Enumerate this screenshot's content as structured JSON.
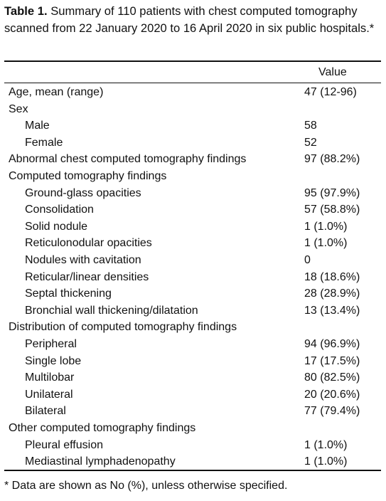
{
  "caption": {
    "label": "Table 1.",
    "text": "Summary of 110 patients with chest computed tomography scanned from 22 January 2020 to 16 April 2020 in six public hospitals.*"
  },
  "table": {
    "header": "Value",
    "rows": [
      {
        "label": "Age, mean (range)",
        "value": "47 (12-96)"
      },
      {
        "label": "Sex",
        "items": [
          {
            "label": "Male",
            "value": "58"
          },
          {
            "label": "Female",
            "value": "52"
          }
        ]
      },
      {
        "label": "Abnormal chest computed tomography findings",
        "value": "97 (88.2%)"
      },
      {
        "label": "Computed tomography findings",
        "items": [
          {
            "label": "Ground-glass opacities",
            "value": "95 (97.9%)"
          },
          {
            "label": "Consolidation",
            "value": "57 (58.8%)"
          },
          {
            "label": "Solid nodule",
            "value": "1 (1.0%)"
          },
          {
            "label": "Reticulonodular opacities",
            "value": "1 (1.0%)"
          },
          {
            "label": "Nodules with cavitation",
            "value": "0"
          },
          {
            "label": "Reticular/linear densities",
            "value": "18 (18.6%)"
          },
          {
            "label": "Septal thickening",
            "value": "28 (28.9%)"
          },
          {
            "label": "Bronchial wall thickening/dilatation",
            "value": "13 (13.4%)"
          }
        ]
      },
      {
        "label": "Distribution of computed tomography findings",
        "items": [
          {
            "label": "Peripheral",
            "value": "94 (96.9%)"
          },
          {
            "label": "Single lobe",
            "value": "17 (17.5%)"
          },
          {
            "label": "Multilobar",
            "value": "80 (82.5%)"
          },
          {
            "label": "Unilateral",
            "value": "20 (20.6%)"
          },
          {
            "label": "Bilateral",
            "value": "77 (79.4%)"
          }
        ]
      },
      {
        "label": "Other computed tomography findings",
        "items": [
          {
            "label": "Pleural effusion",
            "value": "1 (1.0%)"
          },
          {
            "label": "Mediastinal lymphadenopathy",
            "value": "1 (1.0%)"
          }
        ]
      }
    ]
  },
  "footnote": "* Data are shown as No (%), unless otherwise specified."
}
